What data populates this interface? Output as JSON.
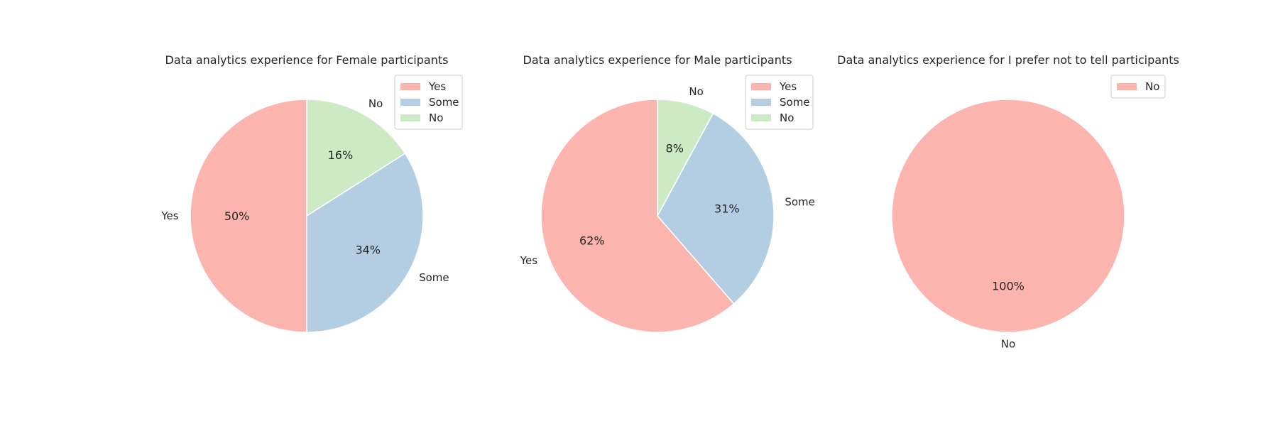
{
  "chart_data": [
    {
      "type": "pie",
      "title": "Data analytics experience for Female participants",
      "categories": [
        "Yes",
        "Some",
        "No"
      ],
      "values": [
        50,
        34,
        16
      ],
      "value_labels": [
        "50%",
        "34%",
        "16%"
      ],
      "colors": [
        "#fbb4ae",
        "#b3cde3",
        "#ccebc5"
      ],
      "start_angle_deg": 90,
      "direction": "counterclockwise",
      "legend": {
        "placement": "upper-right",
        "entries": [
          "Yes",
          "Some",
          "No"
        ]
      }
    },
    {
      "type": "pie",
      "title": "Data analytics experience for Male participants",
      "categories": [
        "Yes",
        "Some",
        "No"
      ],
      "values": [
        62,
        31,
        8
      ],
      "value_labels": [
        "62%",
        "31%",
        "8%"
      ],
      "colors": [
        "#fbb4ae",
        "#b3cde3",
        "#ccebc5"
      ],
      "start_angle_deg": 90,
      "direction": "counterclockwise",
      "legend": {
        "placement": "upper-right",
        "entries": [
          "Yes",
          "Some",
          "No"
        ]
      }
    },
    {
      "type": "pie",
      "title": "Data analytics experience for I prefer not to tell participants",
      "categories": [
        "No"
      ],
      "values": [
        100
      ],
      "value_labels": [
        "100%"
      ],
      "colors": [
        "#fbb4ae"
      ],
      "start_angle_deg": 90,
      "direction": "counterclockwise",
      "legend": {
        "placement": "upper-right",
        "entries": [
          "No"
        ]
      }
    }
  ]
}
